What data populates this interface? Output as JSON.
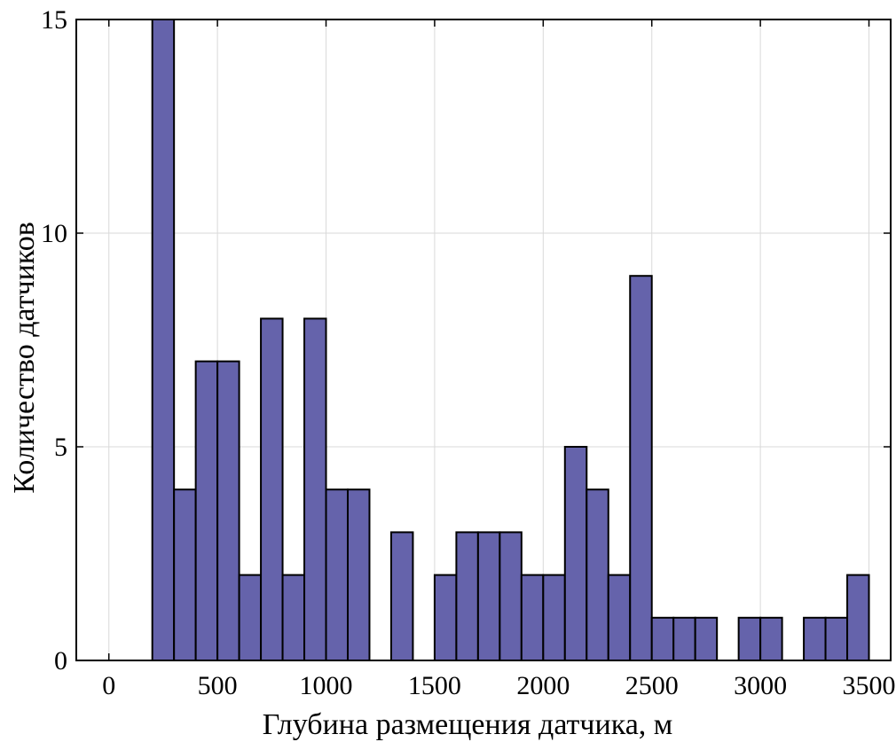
{
  "chart_data": {
    "type": "bar",
    "title": "",
    "xlabel": "Глубина размещения датчика, м",
    "ylabel": "Количество датчиков",
    "xlim": [
      -150,
      3600
    ],
    "ylim": [
      0,
      15
    ],
    "bin_width": 100,
    "grid": true,
    "colors": {
      "bar_fill": "#6563ab",
      "bar_edge": "#000000",
      "grid": "#d9d9d9"
    },
    "xticks": [
      0,
      500,
      1000,
      1500,
      2000,
      2500,
      3000,
      3500
    ],
    "xtick_labels": [
      "0",
      "500",
      "1000",
      "1500",
      "2000",
      "2500",
      "3000",
      "3500"
    ],
    "yticks": [
      0,
      5,
      10,
      15
    ],
    "ytick_labels": [
      "0",
      "5",
      "10",
      "15"
    ],
    "bins": [
      {
        "start": 200,
        "count": 15
      },
      {
        "start": 300,
        "count": 4
      },
      {
        "start": 400,
        "count": 7
      },
      {
        "start": 500,
        "count": 7
      },
      {
        "start": 600,
        "count": 2
      },
      {
        "start": 700,
        "count": 8
      },
      {
        "start": 800,
        "count": 2
      },
      {
        "start": 900,
        "count": 8
      },
      {
        "start": 1000,
        "count": 4
      },
      {
        "start": 1100,
        "count": 4
      },
      {
        "start": 1200,
        "count": 0
      },
      {
        "start": 1300,
        "count": 3
      },
      {
        "start": 1400,
        "count": 0
      },
      {
        "start": 1500,
        "count": 2
      },
      {
        "start": 1600,
        "count": 3
      },
      {
        "start": 1700,
        "count": 3
      },
      {
        "start": 1800,
        "count": 3
      },
      {
        "start": 1900,
        "count": 2
      },
      {
        "start": 2000,
        "count": 2
      },
      {
        "start": 2100,
        "count": 5
      },
      {
        "start": 2200,
        "count": 4
      },
      {
        "start": 2300,
        "count": 2
      },
      {
        "start": 2400,
        "count": 9
      },
      {
        "start": 2500,
        "count": 1
      },
      {
        "start": 2600,
        "count": 1
      },
      {
        "start": 2700,
        "count": 1
      },
      {
        "start": 2800,
        "count": 0
      },
      {
        "start": 2900,
        "count": 1
      },
      {
        "start": 3000,
        "count": 1
      },
      {
        "start": 3100,
        "count": 0
      },
      {
        "start": 3200,
        "count": 1
      },
      {
        "start": 3300,
        "count": 1
      },
      {
        "start": 3400,
        "count": 2
      }
    ]
  }
}
